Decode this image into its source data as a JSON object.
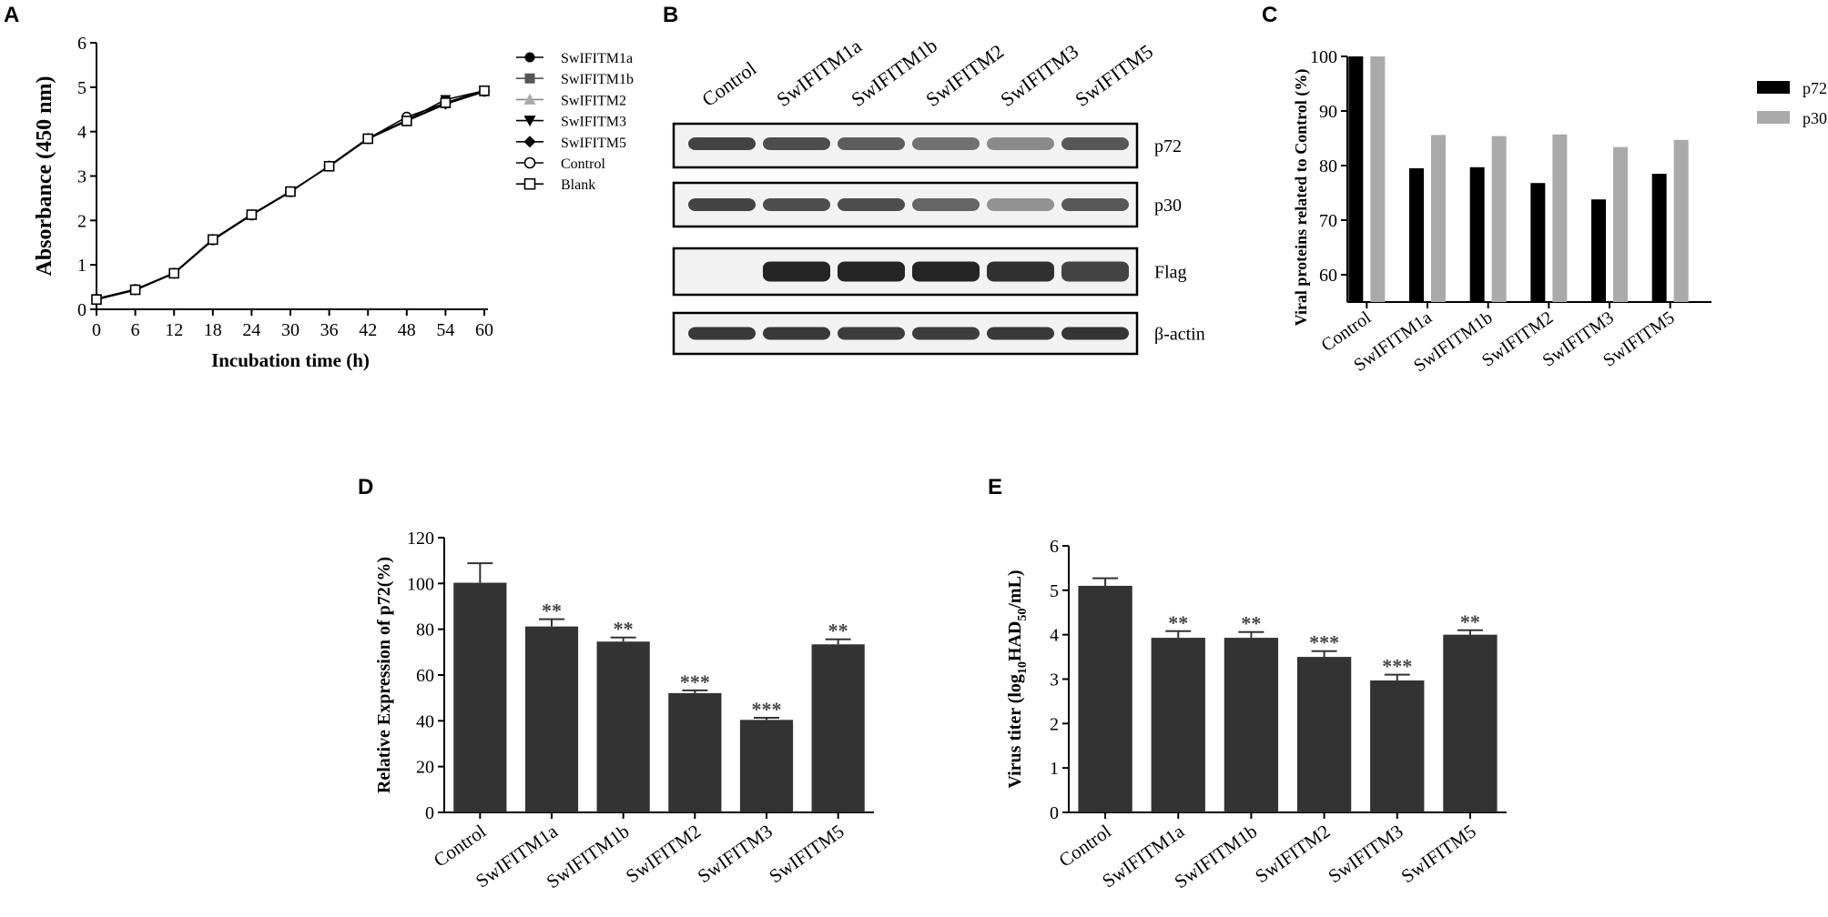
{
  "panels": {
    "A": "A",
    "B": "B",
    "C": "C",
    "D": "D",
    "E": "E"
  },
  "chart_data": [
    {
      "id": "A",
      "type": "line",
      "xlabel": "Incubation time (h)",
      "ylabel": "Absorbance (450 nm)",
      "xlim": [
        0,
        60
      ],
      "ylim": [
        0,
        6
      ],
      "xticks": [
        0,
        6,
        12,
        18,
        24,
        30,
        36,
        42,
        48,
        54,
        60
      ],
      "yticks": [
        0,
        1,
        2,
        3,
        4,
        5,
        6
      ],
      "legend_position": "right",
      "x": [
        0,
        6,
        12,
        18,
        24,
        30,
        36,
        42,
        48,
        54,
        60
      ],
      "series": [
        {
          "name": "SwIFITM1a",
          "marker": "filled-circle",
          "color": "#000000",
          "values": [
            0.23,
            0.44,
            0.81,
            1.57,
            2.13,
            2.65,
            3.22,
            3.84,
            4.24,
            4.62,
            4.9
          ]
        },
        {
          "name": "SwIFITM1b",
          "marker": "filled-square",
          "color": "#555555",
          "values": [
            0.24,
            0.45,
            0.82,
            1.56,
            2.12,
            2.64,
            3.23,
            3.85,
            4.25,
            4.63,
            4.91
          ]
        },
        {
          "name": "SwIFITM2",
          "marker": "filled-triangle-up",
          "color": "#aaaaaa",
          "values": [
            0.23,
            0.44,
            0.8,
            1.55,
            2.13,
            2.66,
            3.21,
            3.83,
            4.23,
            4.64,
            4.89
          ]
        },
        {
          "name": "SwIFITM3",
          "marker": "filled-triangle-down",
          "color": "#000000",
          "values": [
            0.22,
            0.43,
            0.81,
            1.57,
            2.14,
            2.65,
            3.22,
            3.84,
            4.26,
            4.72,
            4.92
          ]
        },
        {
          "name": "SwIFITM5",
          "marker": "filled-diamond",
          "color": "#000000",
          "values": [
            0.24,
            0.44,
            0.82,
            1.58,
            2.13,
            2.64,
            3.23,
            3.85,
            4.24,
            4.62,
            4.9
          ]
        },
        {
          "name": "Control",
          "marker": "open-circle",
          "color": "#000000",
          "values": [
            0.23,
            0.45,
            0.81,
            1.56,
            2.12,
            2.65,
            3.22,
            3.84,
            4.33,
            4.64,
            4.91
          ]
        },
        {
          "name": "Blank",
          "marker": "open-square",
          "color": "#000000",
          "values": [
            0.22,
            0.44,
            0.81,
            1.57,
            2.13,
            2.65,
            3.22,
            3.84,
            4.24,
            4.65,
            4.92
          ]
        }
      ]
    },
    {
      "id": "C",
      "type": "bar",
      "ylabel": "Viral proteins related to Control (%)",
      "ylim": [
        55,
        100
      ],
      "yticks": [
        60,
        70,
        80,
        90,
        100
      ],
      "legend_position": "right",
      "categories": [
        "Control",
        "SwIFITM1a",
        "SwIFITM1b",
        "SwIFITM2",
        "SwIFITM3",
        "SwIFITM5"
      ],
      "series": [
        {
          "name": "p72",
          "color": "#000000",
          "values": [
            100,
            79.5,
            79.7,
            76.8,
            73.8,
            78.5
          ]
        },
        {
          "name": "p30",
          "color": "#aaaaaa",
          "values": [
            100,
            85.6,
            85.4,
            85.7,
            83.4,
            84.7
          ]
        }
      ]
    },
    {
      "id": "D",
      "type": "bar",
      "ylabel": "Relative Expression of p72(%)",
      "ylim": [
        0,
        120
      ],
      "yticks": [
        0,
        20,
        40,
        60,
        80,
        100,
        120
      ],
      "categories": [
        "Control",
        "SwIFITM1a",
        "SwIFITM1b",
        "SwIFITM2",
        "SwIFITM3",
        "SwIFITM5"
      ],
      "values": [
        100.3,
        81.2,
        74.6,
        52.1,
        40.4,
        73.4
      ],
      "errors": [
        8.5,
        3.2,
        1.8,
        1.2,
        0.9,
        2.2
      ],
      "significance": [
        "",
        "**",
        "**",
        "***",
        "***",
        "**"
      ],
      "color": "#333333"
    },
    {
      "id": "E",
      "type": "bar",
      "ylabel_prefix": "Virus titer (log",
      "ylabel_sub1": "10",
      "ylabel_mid": "HAD",
      "ylabel_sub2": "50",
      "ylabel_suffix": "/mL)",
      "ylim": [
        0,
        6
      ],
      "yticks": [
        0,
        1,
        2,
        3,
        4,
        5,
        6
      ],
      "categories": [
        "Control",
        "SwIFITM1a",
        "SwIFITM1b",
        "SwIFITM2",
        "SwIFITM3",
        "SwIFITM5"
      ],
      "values": [
        5.1,
        3.93,
        3.93,
        3.5,
        2.97,
        4.0
      ],
      "errors": [
        0.17,
        0.15,
        0.13,
        0.13,
        0.13,
        0.1
      ],
      "significance": [
        "",
        "**",
        "**",
        "***",
        "***",
        "**"
      ],
      "color": "#333333"
    }
  ],
  "blot": {
    "lanes": [
      "Control",
      "SwIFITM1a",
      "SwIFITM1b",
      "SwIFITM2",
      "SwIFITM3",
      "SwIFITM5"
    ],
    "rows": [
      {
        "label": "p72",
        "intensity": [
          0.85,
          0.8,
          0.72,
          0.62,
          0.5,
          0.75
        ]
      },
      {
        "label": "p30",
        "intensity": [
          0.85,
          0.8,
          0.8,
          0.68,
          0.45,
          0.75
        ]
      },
      {
        "label": "Flag",
        "intensity": [
          0.0,
          1.0,
          1.0,
          1.0,
          0.95,
          0.85
        ]
      },
      {
        "label": "β-actin",
        "intensity": [
          0.9,
          0.9,
          0.88,
          0.88,
          0.9,
          0.92
        ]
      }
    ]
  }
}
